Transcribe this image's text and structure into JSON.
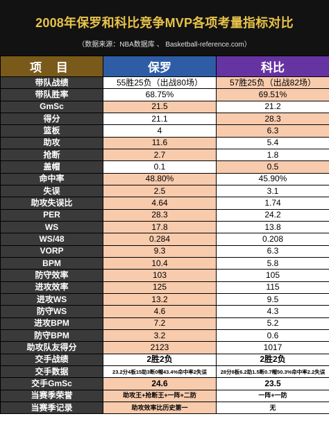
{
  "header": {
    "title": "2008年保罗和科比竞争MVP各项考量指标对比",
    "subtitle": "（数据来源：NBA数据库 、 Basketball-reference.com）"
  },
  "table": {
    "columns": [
      "项  目",
      "保罗",
      "科比"
    ],
    "rows": [
      {
        "label": "带队战绩",
        "paul": "55胜25负（出战80场）",
        "kobe": "57胜25负（出战82场）",
        "hl": "kobe"
      },
      {
        "label": "带队胜率",
        "paul": "68.75%",
        "kobe": "69.51%",
        "hl": "kobe"
      },
      {
        "label": "GmSc",
        "paul": "21.5",
        "kobe": "21.2",
        "hl": "paul"
      },
      {
        "label": "得分",
        "paul": "21.1",
        "kobe": "28.3",
        "hl": "kobe"
      },
      {
        "label": "篮板",
        "paul": "4",
        "kobe": "6.3",
        "hl": "kobe"
      },
      {
        "label": "助攻",
        "paul": "11.6",
        "kobe": "5.4",
        "hl": "paul"
      },
      {
        "label": "抢断",
        "paul": "2.7",
        "kobe": "1.8",
        "hl": "paul"
      },
      {
        "label": "盖帽",
        "paul": "0.1",
        "kobe": "0.5",
        "hl": "kobe"
      },
      {
        "label": "命中率",
        "paul": "48.80%",
        "kobe": "45.90%",
        "hl": "paul"
      },
      {
        "label": "失误",
        "paul": "2.5",
        "kobe": "3.1",
        "hl": "paul"
      },
      {
        "label": "助攻失误比",
        "paul": "4.64",
        "kobe": "1.74",
        "hl": "paul"
      },
      {
        "label": "PER",
        "paul": "28.3",
        "kobe": "24.2",
        "hl": "paul"
      },
      {
        "label": "WS",
        "paul": "17.8",
        "kobe": "13.8",
        "hl": "paul"
      },
      {
        "label": "WS/48",
        "paul": "0.284",
        "kobe": "0.208",
        "hl": "paul"
      },
      {
        "label": "VORP",
        "paul": "9.3",
        "kobe": "6.3",
        "hl": "paul"
      },
      {
        "label": "BPM",
        "paul": "10.4",
        "kobe": "5.8",
        "hl": "paul"
      },
      {
        "label": "防守效率",
        "paul": "103",
        "kobe": "105",
        "hl": "paul"
      },
      {
        "label": "进攻效率",
        "paul": "125",
        "kobe": "115",
        "hl": "paul"
      },
      {
        "label": "进攻WS",
        "paul": "13.2",
        "kobe": "9.5",
        "hl": "paul"
      },
      {
        "label": "防守WS",
        "paul": "4.6",
        "kobe": "4.3",
        "hl": "paul"
      },
      {
        "label": "进攻BPM",
        "paul": "7.2",
        "kobe": "5.2",
        "hl": "paul"
      },
      {
        "label": "防守BPM",
        "paul": "3.2",
        "kobe": "0.6",
        "hl": "paul"
      },
      {
        "label": "助攻队友得分",
        "paul": "2123",
        "kobe": "1017",
        "hl": "paul"
      },
      {
        "label": "交手战绩",
        "paul": "2胜2负",
        "kobe": "2胜2负",
        "hl": "none",
        "bold": true
      },
      {
        "label": "交手数据",
        "paul": "23.2分4板15助3断0帽43.4%命中率2失误",
        "kobe": "28分8板6.2助1.5断0.7帽50.3%命中率2.2失误",
        "hl": "none",
        "small": true
      },
      {
        "label": "交手GmSc",
        "paul": "24.6",
        "kobe": "23.5",
        "hl": "paul",
        "bold": true
      },
      {
        "label": "当赛季荣誉",
        "paul": "助攻王+抢断王+一阵+二防",
        "kobe": "一阵+一防",
        "hl": "paul",
        "smallish": true
      },
      {
        "label": "当赛季记录",
        "paul": "助攻效率比历史第一",
        "kobe": "无",
        "hl": "paul",
        "smallish": true
      }
    ]
  },
  "colors": {
    "banner_bg": "#121212",
    "title": "#e8c34a",
    "header_item": "#7a5a1a",
    "header_paul": "#2e5da6",
    "header_kobe": "#6633a3",
    "label_bg": "#3a3a3a",
    "highlight": "#f8cbad"
  }
}
